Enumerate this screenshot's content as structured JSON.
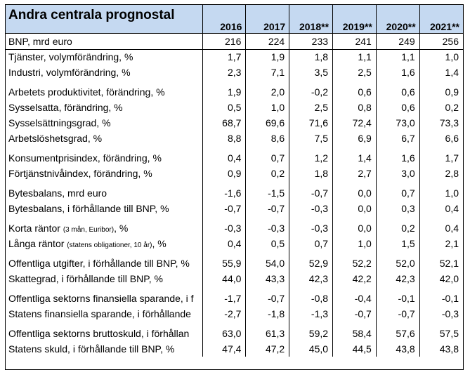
{
  "table": {
    "title": "Andra centrala prognostal",
    "years": [
      "2016",
      "2017",
      "2018**",
      "2019**",
      "2020**",
      "2021**"
    ],
    "rows": [
      {
        "label": "BNP, mrd euro",
        "values": [
          "216",
          "224",
          "233",
          "241",
          "249",
          "256"
        ]
      },
      {
        "label": "Tjänster, volymförändring, %",
        "values": [
          "1,7",
          "1,9",
          "1,8",
          "1,1",
          "1,1",
          "1,0"
        ]
      },
      {
        "label": "Industri, volymförändring, %",
        "values": [
          "2,3",
          "7,1",
          "3,5",
          "2,5",
          "1,6",
          "1,4"
        ]
      },
      {
        "label": "Arbetets produktivitet, förändring, %",
        "values": [
          "1,9",
          "2,0",
          "-0,2",
          "0,6",
          "0,6",
          "0,9"
        ]
      },
      {
        "label": "Sysselsatta, förändring, %",
        "values": [
          "0,5",
          "1,0",
          "2,5",
          "0,8",
          "0,6",
          "0,2"
        ]
      },
      {
        "label": "Sysselsättningsgrad, %",
        "values": [
          "68,7",
          "69,6",
          "71,6",
          "72,4",
          "73,0",
          "73,3"
        ]
      },
      {
        "label": "Arbetslöshetsgrad, %",
        "values": [
          "8,8",
          "8,6",
          "7,5",
          "6,9",
          "6,7",
          "6,6"
        ]
      },
      {
        "label": "Konsumentprisindex, förändring, %",
        "values": [
          "0,4",
          "0,7",
          "1,2",
          "1,4",
          "1,6",
          "1,7"
        ]
      },
      {
        "label": "Förtjänstnivåindex, förändring, %",
        "values": [
          "0,9",
          "0,2",
          "1,8",
          "2,7",
          "3,0",
          "2,8"
        ]
      },
      {
        "label": "Bytesbalans, mrd euro",
        "values": [
          "-1,6",
          "-1,5",
          "-0,7",
          "0,0",
          "0,7",
          "1,0"
        ]
      },
      {
        "label": "Bytesbalans, i förhållande till BNP, %",
        "values": [
          "-0,7",
          "-0,7",
          "-0,3",
          "0,0",
          "0,3",
          "0,4"
        ]
      },
      {
        "label": "Korta räntor",
        "note": "(3 mån, Euribor)",
        "suffix": ", %",
        "values": [
          "-0,3",
          "-0,3",
          "-0,3",
          "0,0",
          "0,2",
          "0,4"
        ]
      },
      {
        "label": "Långa räntor",
        "note": "(statens obligationer, 10 år)",
        "suffix": ", %",
        "values": [
          "0,4",
          "0,5",
          "0,7",
          "1,0",
          "1,5",
          "2,1"
        ]
      },
      {
        "label": "Offentliga utgifter, i förhållande till BNP, %",
        "values": [
          "55,9",
          "54,0",
          "52,9",
          "52,2",
          "52,0",
          "52,1"
        ]
      },
      {
        "label": "Skattegrad, i förhållande till BNP, %",
        "values": [
          "44,0",
          "43,3",
          "42,3",
          "42,2",
          "42,3",
          "42,0"
        ]
      },
      {
        "label": "Offentliga sektorns finansiella sparande, i f",
        "values": [
          "-1,7",
          "-0,7",
          "-0,8",
          "-0,4",
          "-0,1",
          "-0,1"
        ]
      },
      {
        "label": "Statens finansiella sparande, i förhållande",
        "values": [
          "-2,7",
          "-1,8",
          "-1,3",
          "-0,7",
          "-0,7",
          "-0,3"
        ]
      },
      {
        "label": "Offentliga sektorns bruttoskuld, i förhållan",
        "values": [
          "63,0",
          "61,3",
          "59,2",
          "58,4",
          "57,6",
          "57,5"
        ]
      },
      {
        "label": "Statens skuld, i förhållande till BNP, %",
        "values": [
          "47,4",
          "47,2",
          "45,0",
          "44,5",
          "43,8",
          "43,8"
        ]
      }
    ]
  }
}
